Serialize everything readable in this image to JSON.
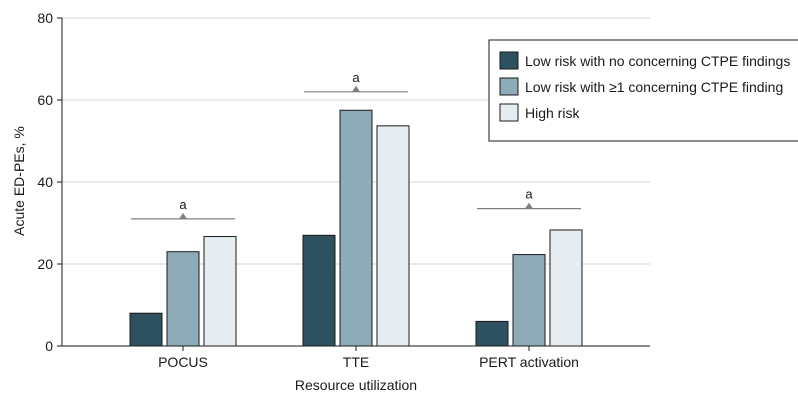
{
  "chart_data": {
    "type": "bar",
    "title": "",
    "xlabel": "Resource utilization",
    "ylabel": "Acute ED-PEs, %",
    "ylim": [
      0,
      80
    ],
    "yticks": [
      0,
      20,
      40,
      60,
      80
    ],
    "grid": true,
    "legend_position": "top-right",
    "categories": [
      "POCUS",
      "TTE",
      "PERT activation"
    ],
    "series": [
      {
        "name": "Low risk with no concerning CTPE findings",
        "color": "#2e5160",
        "values": [
          8.0,
          27.0,
          6.0
        ]
      },
      {
        "name": "Low risk with ≥1 concerning CTPE finding",
        "color": "#8eacb8",
        "values": [
          23.0,
          57.5,
          22.3
        ]
      },
      {
        "name": "High risk",
        "color": "#e5edf0",
        "values": [
          26.7,
          53.7,
          28.3
        ]
      }
    ],
    "annotations": [
      {
        "category": "POCUS",
        "label": "a",
        "y": 31
      },
      {
        "category": "TTE",
        "label": "a",
        "y": 62
      },
      {
        "category": "PERT activation",
        "label": "a",
        "y": 33.5
      }
    ]
  }
}
